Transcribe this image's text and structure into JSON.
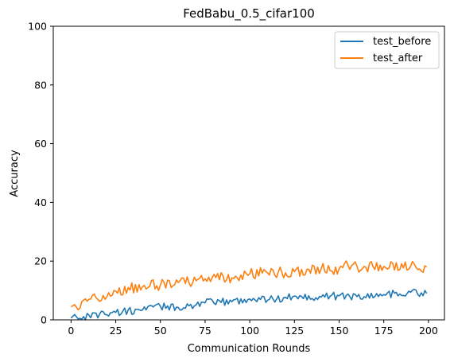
{
  "chart_data": {
    "type": "line",
    "title": "FedBabu_0.5_cifar100",
    "xlabel": "Communication Rounds",
    "ylabel": "Accuracy",
    "xlim": [
      -9.95,
      208.95
    ],
    "ylim": [
      0,
      100
    ],
    "xticks": [
      0,
      25,
      50,
      75,
      100,
      125,
      150,
      175,
      200
    ],
    "yticks": [
      0,
      20,
      40,
      60,
      80,
      100
    ],
    "grid": false,
    "legend_position": "top-right",
    "series": [
      {
        "name": "test_before",
        "color": "#1f77b4",
        "keypoints": [
          [
            0,
            0.6
          ],
          [
            2,
            1.8
          ],
          [
            4,
            0.3
          ],
          [
            10,
            1.6
          ],
          [
            25,
            2.5
          ],
          [
            40,
            3.4
          ],
          [
            50,
            4.6
          ],
          [
            60,
            4.2
          ],
          [
            75,
            5.8
          ],
          [
            90,
            6.2
          ],
          [
            100,
            7.1
          ],
          [
            115,
            7.0
          ],
          [
            125,
            8.1
          ],
          [
            140,
            7.8
          ],
          [
            150,
            8.2
          ],
          [
            160,
            7.9
          ],
          [
            175,
            8.6
          ],
          [
            190,
            9.4
          ],
          [
            199,
            9.0
          ]
        ],
        "noise_amplitude": 1.3
      },
      {
        "name": "test_after",
        "color": "#ff7f0e",
        "keypoints": [
          [
            0,
            4.4
          ],
          [
            2,
            5.2
          ],
          [
            4,
            3.4
          ],
          [
            10,
            7.0
          ],
          [
            25,
            9.8
          ],
          [
            40,
            11.3
          ],
          [
            50,
            11.9
          ],
          [
            60,
            12.7
          ],
          [
            75,
            14.0
          ],
          [
            90,
            14.3
          ],
          [
            100,
            15.7
          ],
          [
            110,
            16.0
          ],
          [
            125,
            16.4
          ],
          [
            140,
            17.5
          ],
          [
            150,
            17.4
          ],
          [
            155,
            18.5
          ],
          [
            165,
            17.8
          ],
          [
            175,
            18.2
          ],
          [
            190,
            18.2
          ],
          [
            199,
            18.0
          ]
        ],
        "noise_amplitude": 2.0
      }
    ]
  }
}
